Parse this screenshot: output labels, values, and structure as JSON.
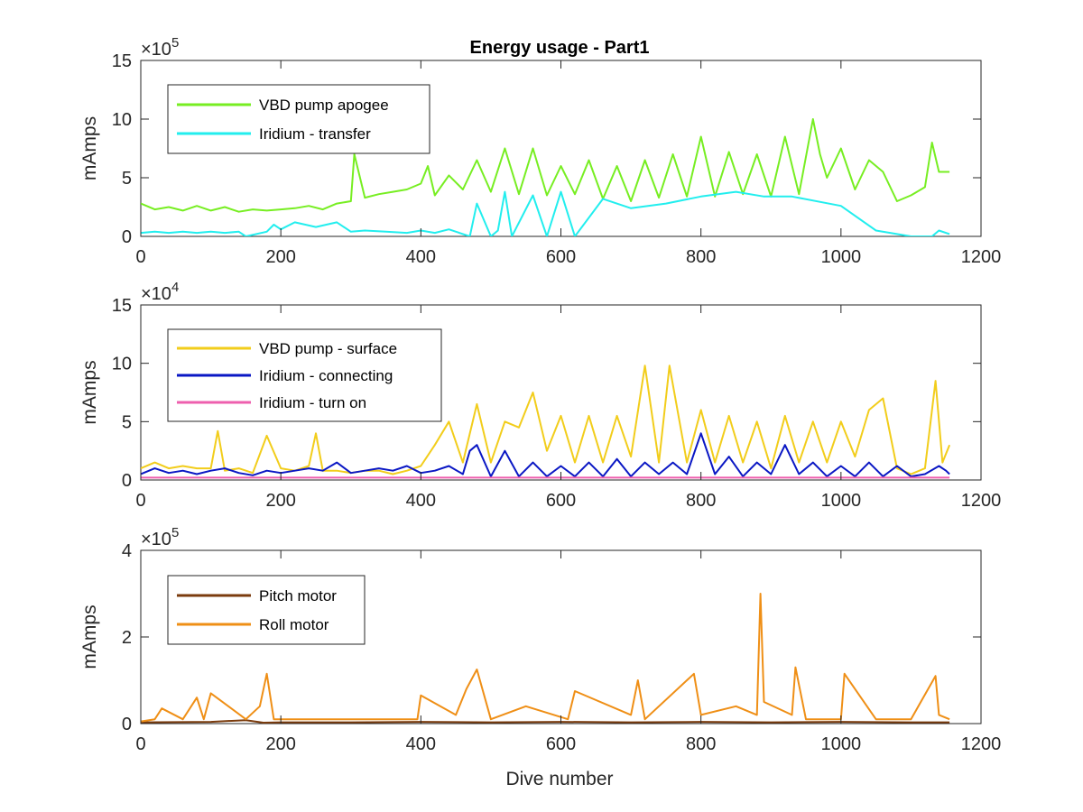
{
  "figure": {
    "title": "Energy usage - Part1",
    "xlabel": "Dive number"
  },
  "chart_data": [
    {
      "type": "line",
      "title": "Energy usage - Part1",
      "ylabel": "mAmps",
      "xlabel": "",
      "xlim": [
        0,
        1200
      ],
      "ylim": [
        0,
        15
      ],
      "y_multiplier": "×10",
      "y_exponent": "5",
      "xticks": [
        "0",
        "200",
        "400",
        "600",
        "800",
        "1000",
        "1200"
      ],
      "yticks": [
        "0",
        "5",
        "10",
        "15"
      ],
      "ytick_values": [
        0,
        5,
        10,
        15
      ],
      "legend_location": "top-left",
      "grid": false,
      "series": [
        {
          "name": "VBD pump apogee",
          "color": "#77ee22",
          "x": [
            0,
            20,
            40,
            60,
            80,
            100,
            120,
            140,
            160,
            180,
            200,
            220,
            240,
            260,
            280,
            300,
            305,
            320,
            340,
            360,
            380,
            400,
            410,
            420,
            440,
            460,
            480,
            500,
            520,
            540,
            560,
            580,
            600,
            620,
            640,
            660,
            680,
            700,
            720,
            740,
            760,
            780,
            800,
            820,
            840,
            860,
            880,
            900,
            920,
            940,
            960,
            970,
            980,
            1000,
            1020,
            1040,
            1060,
            1080,
            1100,
            1120,
            1130,
            1140,
            1155
          ],
          "y": [
            2.8,
            2.3,
            2.5,
            2.2,
            2.6,
            2.2,
            2.5,
            2.1,
            2.3,
            2.2,
            2.3,
            2.4,
            2.6,
            2.3,
            2.8,
            3.0,
            7.0,
            3.3,
            3.6,
            3.8,
            4.0,
            4.5,
            6.0,
            3.5,
            5.2,
            4.0,
            6.5,
            3.8,
            7.5,
            3.6,
            7.5,
            3.5,
            6.0,
            3.6,
            6.5,
            3.2,
            6.0,
            3.0,
            6.5,
            3.3,
            7.0,
            3.4,
            8.5,
            3.4,
            7.2,
            3.6,
            7.0,
            3.4,
            8.5,
            3.6,
            10.0,
            7.0,
            5.0,
            7.5,
            4.0,
            6.5,
            5.5,
            3.0,
            3.5,
            4.2,
            8.0,
            5.5,
            5.5
          ]
        },
        {
          "name": "Iridium - transfer",
          "color": "#22eeee",
          "x": [
            0,
            20,
            40,
            60,
            80,
            100,
            120,
            140,
            150,
            180,
            190,
            200,
            220,
            250,
            280,
            300,
            320,
            350,
            380,
            400,
            420,
            440,
            470,
            480,
            500,
            510,
            520,
            530,
            560,
            580,
            600,
            620,
            660,
            700,
            750,
            800,
            850,
            890,
            930,
            1000,
            1050,
            1100,
            1130,
            1140,
            1155
          ],
          "y": [
            0.3,
            0.4,
            0.3,
            0.4,
            0.3,
            0.4,
            0.3,
            0.4,
            0.0,
            0.4,
            1.0,
            0.6,
            1.2,
            0.8,
            1.2,
            0.4,
            0.5,
            0.4,
            0.3,
            0.5,
            0.3,
            0.6,
            0.0,
            2.8,
            0.0,
            0.5,
            3.8,
            0.0,
            3.5,
            0.0,
            3.8,
            0.0,
            3.2,
            2.4,
            2.8,
            3.4,
            3.8,
            3.4,
            3.4,
            2.6,
            0.5,
            0.0,
            0.0,
            0.5,
            0.2
          ]
        }
      ]
    },
    {
      "type": "line",
      "title": "",
      "ylabel": "mAmps",
      "xlabel": "",
      "xlim": [
        0,
        1200
      ],
      "ylim": [
        0,
        15
      ],
      "y_multiplier": "×10",
      "y_exponent": "4",
      "xticks": [
        "0",
        "200",
        "400",
        "600",
        "800",
        "1000",
        "1200"
      ],
      "yticks": [
        "0",
        "5",
        "10",
        "15"
      ],
      "ytick_values": [
        0,
        5,
        10,
        15
      ],
      "legend_location": "top-left",
      "grid": false,
      "series": [
        {
          "name": "VBD pump - surface",
          "color": "#f2cd1b",
          "x": [
            0,
            20,
            40,
            60,
            80,
            100,
            110,
            120,
            140,
            160,
            180,
            200,
            220,
            240,
            250,
            260,
            280,
            300,
            320,
            340,
            360,
            380,
            400,
            420,
            440,
            460,
            480,
            500,
            520,
            540,
            560,
            580,
            600,
            620,
            640,
            660,
            680,
            700,
            720,
            740,
            755,
            780,
            800,
            820,
            840,
            860,
            880,
            900,
            920,
            940,
            960,
            980,
            1000,
            1020,
            1040,
            1060,
            1080,
            1100,
            1120,
            1135,
            1145,
            1155
          ],
          "y": [
            1.0,
            1.5,
            1.0,
            1.2,
            1.0,
            1.0,
            4.2,
            0.8,
            1.0,
            0.6,
            3.8,
            1.0,
            0.8,
            1.2,
            4.0,
            0.8,
            0.8,
            0.6,
            0.8,
            0.8,
            0.5,
            0.8,
            1.2,
            3.0,
            5.0,
            1.5,
            6.5,
            1.5,
            5.0,
            4.5,
            7.5,
            2.5,
            5.5,
            1.5,
            5.5,
            1.5,
            5.5,
            2.0,
            9.8,
            1.5,
            9.8,
            1.5,
            6.0,
            1.5,
            5.5,
            1.5,
            5.0,
            1.0,
            5.5,
            1.5,
            5.0,
            1.5,
            5.0,
            2.0,
            6.0,
            7.0,
            1.0,
            0.5,
            1.0,
            8.5,
            1.5,
            3.0
          ]
        },
        {
          "name": "Iridium - connecting",
          "color": "#0a17c4",
          "x": [
            0,
            20,
            40,
            60,
            80,
            100,
            120,
            140,
            160,
            180,
            200,
            220,
            240,
            260,
            280,
            300,
            320,
            340,
            360,
            380,
            400,
            420,
            440,
            460,
            470,
            480,
            500,
            520,
            540,
            560,
            580,
            600,
            620,
            640,
            660,
            680,
            700,
            720,
            740,
            760,
            780,
            800,
            820,
            840,
            860,
            880,
            900,
            920,
            940,
            960,
            980,
            1000,
            1020,
            1040,
            1060,
            1080,
            1100,
            1120,
            1140,
            1150,
            1155
          ],
          "y": [
            0.5,
            1.0,
            0.6,
            0.8,
            0.5,
            0.8,
            1.0,
            0.6,
            0.4,
            0.8,
            0.6,
            0.8,
            1.0,
            0.8,
            1.5,
            0.6,
            0.8,
            1.0,
            0.8,
            1.2,
            0.6,
            0.8,
            1.2,
            0.5,
            2.5,
            3.0,
            0.3,
            2.5,
            0.3,
            1.5,
            0.3,
            1.2,
            0.3,
            1.5,
            0.3,
            1.8,
            0.3,
            1.5,
            0.5,
            1.5,
            0.5,
            4.0,
            0.5,
            2.0,
            0.3,
            1.5,
            0.5,
            3.0,
            0.5,
            1.5,
            0.3,
            1.2,
            0.3,
            1.5,
            0.3,
            1.2,
            0.3,
            0.5,
            1.2,
            0.8,
            0.5
          ]
        },
        {
          "name": "Iridium - turn on",
          "color": "#ee5fae",
          "x": [
            0,
            100,
            200,
            300,
            400,
            500,
            600,
            700,
            800,
            900,
            1000,
            1100,
            1155
          ],
          "y": [
            0.2,
            0.2,
            0.2,
            0.2,
            0.2,
            0.2,
            0.2,
            0.2,
            0.2,
            0.2,
            0.2,
            0.2,
            0.2
          ]
        }
      ]
    },
    {
      "type": "line",
      "title": "",
      "ylabel": "mAmps",
      "xlabel": "Dive number",
      "xlim": [
        0,
        1200
      ],
      "ylim": [
        0,
        4
      ],
      "y_multiplier": "×10",
      "y_exponent": "5",
      "xticks": [
        "0",
        "200",
        "400",
        "600",
        "800",
        "1000",
        "1200"
      ],
      "yticks": [
        "0",
        "2",
        "4"
      ],
      "ytick_values": [
        0,
        2,
        4
      ],
      "legend_location": "top-left",
      "grid": false,
      "series": [
        {
          "name": "Pitch motor",
          "color": "#7a3b0d",
          "x": [
            0,
            100,
            150,
            175,
            200,
            300,
            400,
            500,
            600,
            700,
            800,
            900,
            1000,
            1100,
            1155
          ],
          "y": [
            0.03,
            0.04,
            0.08,
            0.02,
            0.03,
            0.03,
            0.04,
            0.03,
            0.04,
            0.03,
            0.04,
            0.03,
            0.04,
            0.03,
            0.03
          ]
        },
        {
          "name": "Roll motor",
          "color": "#ef8f16",
          "x": [
            0,
            20,
            30,
            60,
            80,
            90,
            100,
            150,
            170,
            180,
            190,
            250,
            300,
            350,
            395,
            400,
            450,
            465,
            480,
            500,
            550,
            610,
            620,
            700,
            710,
            720,
            790,
            800,
            850,
            880,
            885,
            890,
            930,
            935,
            950,
            1000,
            1005,
            1050,
            1100,
            1135,
            1140,
            1155
          ],
          "y": [
            0.05,
            0.1,
            0.35,
            0.1,
            0.6,
            0.1,
            0.7,
            0.1,
            0.4,
            1.15,
            0.1,
            0.1,
            0.1,
            0.1,
            0.1,
            0.65,
            0.2,
            0.8,
            1.25,
            0.1,
            0.4,
            0.1,
            0.75,
            0.2,
            1.0,
            0.1,
            1.15,
            0.2,
            0.4,
            0.2,
            3.0,
            0.5,
            0.2,
            1.3,
            0.1,
            0.1,
            1.15,
            0.1,
            0.1,
            1.1,
            0.2,
            0.1
          ]
        }
      ]
    }
  ]
}
